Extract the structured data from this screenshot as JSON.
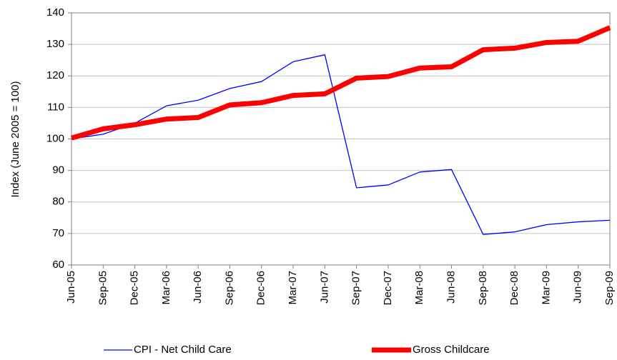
{
  "chart_data": {
    "type": "line",
    "y_label": "Index (June 2005 = 100)",
    "categories": [
      "Jun-05",
      "Sep-05",
      "Dec-05",
      "Mar-06",
      "Jun-06",
      "Sep-06",
      "Dec-06",
      "Mar-07",
      "Jun-07",
      "Sep-07",
      "Dec-07",
      "Mar-08",
      "Jun-08",
      "Sep-08",
      "Dec-08",
      "Mar-09",
      "Jun-09",
      "Sep-09"
    ],
    "series": [
      {
        "name": "CPI - Net Child Care",
        "color": "#0000ff",
        "width": 1.3,
        "values": [
          100,
          101.5,
          105,
          110.5,
          112.3,
          116,
          118.2,
          124.5,
          126.7,
          84.5,
          85.4,
          89.5,
          90.3,
          69.7,
          70.5,
          72.8,
          73.7,
          74.2
        ]
      },
      {
        "name": "Gross Childcare",
        "color": "#ff0000",
        "width": 7,
        "values": [
          100.3,
          103.2,
          104.5,
          106.3,
          106.8,
          110.8,
          111.5,
          113.8,
          114.3,
          119.3,
          119.8,
          122.5,
          122.9,
          128.3,
          128.8,
          130.6,
          131,
          135.3
        ]
      }
    ],
    "ylim": [
      60,
      140
    ],
    "yticks": [
      60,
      70,
      80,
      90,
      100,
      110,
      120,
      130,
      140
    ],
    "grid": true,
    "legend": "bottom"
  }
}
